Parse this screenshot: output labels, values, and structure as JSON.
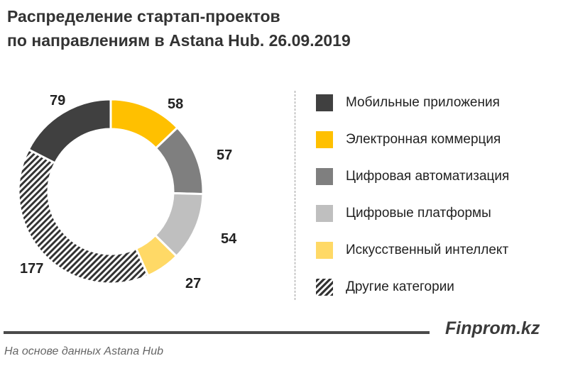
{
  "title_line1": "Распределение стартап-проектов",
  "title_line2": "по направлениям в Astana Hub. 26.09.2019",
  "brand": "Finprom.kz",
  "source": "На основе данных Astana Hub",
  "chart_data": {
    "type": "pie",
    "donut": true,
    "title": "Распределение стартап-проектов по направлениям в Astana Hub. 26.09.2019",
    "legend_position": "right",
    "categories": [
      "Мобильные приложения",
      "Электронная коммерция",
      "Цифровая автоматизация",
      "Цифровые платформы",
      "Искусственный интеллект",
      "Другие категории"
    ],
    "values": [
      79,
      58,
      57,
      54,
      27,
      177
    ],
    "labels": [
      "79",
      "58",
      "57",
      "54",
      "27",
      "177"
    ],
    "colors": [
      "#404040",
      "#ffc000",
      "#7f7f7f",
      "#bfbfbf",
      "#ffd966",
      "hatch"
    ]
  }
}
